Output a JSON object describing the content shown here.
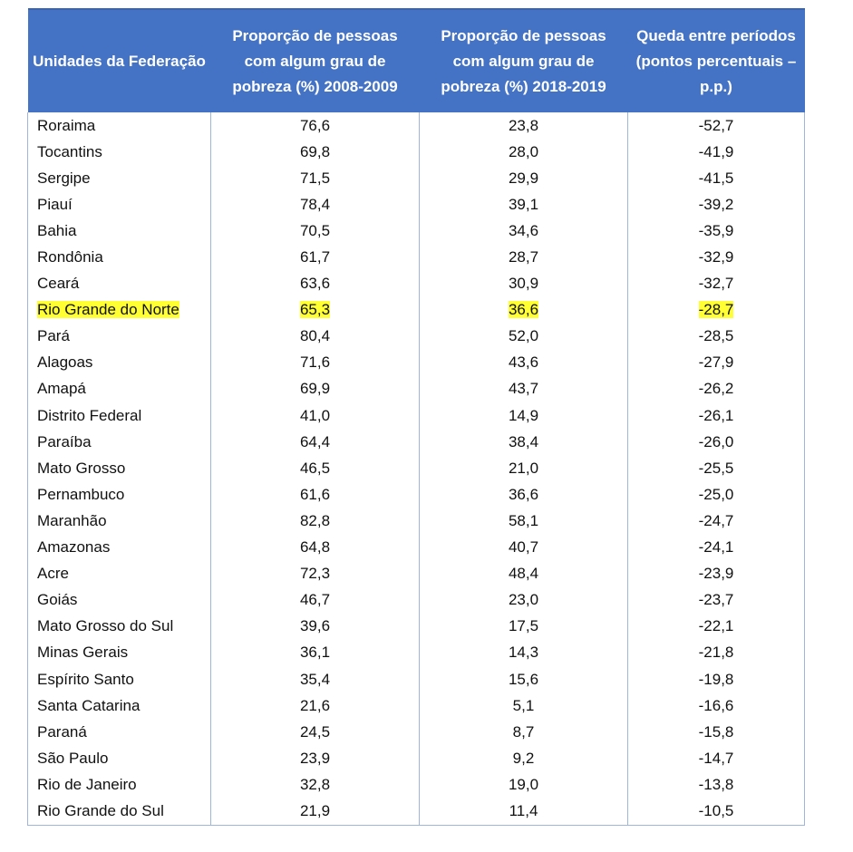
{
  "headers": [
    "Unidades da Federação",
    "Proporção de pessoas com algum grau de pobreza (%) 2008-2009",
    "Proporção de pessoas com algum grau de pobreza (%) 2018-2019",
    "Queda entre períodos (pontos percentuais – p.p.)"
  ],
  "highlight_color": "#ffff33",
  "header_color": "#4472C4",
  "rows": [
    [
      "Roraima",
      "76,6",
      "23,8",
      "-52,7"
    ],
    [
      "Tocantins",
      "69,8",
      "28,0",
      "-41,9"
    ],
    [
      "Sergipe",
      "71,5",
      "29,9",
      "-41,5"
    ],
    [
      "Piauí",
      "78,4",
      "39,1",
      "-39,2"
    ],
    [
      "Bahia",
      "70,5",
      "34,6",
      "-35,9"
    ],
    [
      "Rondônia",
      "61,7",
      "28,7",
      "-32,9"
    ],
    [
      "Ceará",
      "63,6",
      "30,9",
      "-32,7"
    ],
    [
      "Rio Grande do Norte",
      "65,3",
      "36,6",
      "-28,7"
    ],
    [
      "Pará",
      "80,4",
      "52,0",
      "-28,5"
    ],
    [
      "Alagoas",
      "71,6",
      "43,6",
      "-27,9"
    ],
    [
      "Amapá",
      "69,9",
      "43,7",
      "-26,2"
    ],
    [
      "Distrito Federal",
      "41,0",
      "14,9",
      "-26,1"
    ],
    [
      "Paraíba",
      "64,4",
      "38,4",
      "-26,0"
    ],
    [
      "Mato Grosso",
      "46,5",
      "21,0",
      "-25,5"
    ],
    [
      "Pernambuco",
      "61,6",
      "36,6",
      "-25,0"
    ],
    [
      "Maranhão",
      "82,8",
      "58,1",
      "-24,7"
    ],
    [
      "Amazonas",
      "64,8",
      "40,7",
      "-24,1"
    ],
    [
      "Acre",
      "72,3",
      "48,4",
      "-23,9"
    ],
    [
      "Goiás",
      "46,7",
      "23,0",
      "-23,7"
    ],
    [
      "Mato Grosso do Sul",
      "39,6",
      "17,5",
      "-22,1"
    ],
    [
      "Minas Gerais",
      "36,1",
      "14,3",
      "-21,8"
    ],
    [
      "Espírito Santo",
      "35,4",
      "15,6",
      "-19,8"
    ],
    [
      "Santa Catarina",
      "21,6",
      "5,1",
      "-16,6"
    ],
    [
      "Paraná",
      "24,5",
      "8,7",
      "-15,8"
    ],
    [
      "São Paulo",
      "23,9",
      "9,2",
      "-14,7"
    ],
    [
      "Rio de Janeiro",
      "32,8",
      "19,0",
      "-13,8"
    ],
    [
      "Rio Grande do Sul",
      "21,9",
      "11,4",
      "-10,5"
    ]
  ],
  "highlighted_row": 7
}
